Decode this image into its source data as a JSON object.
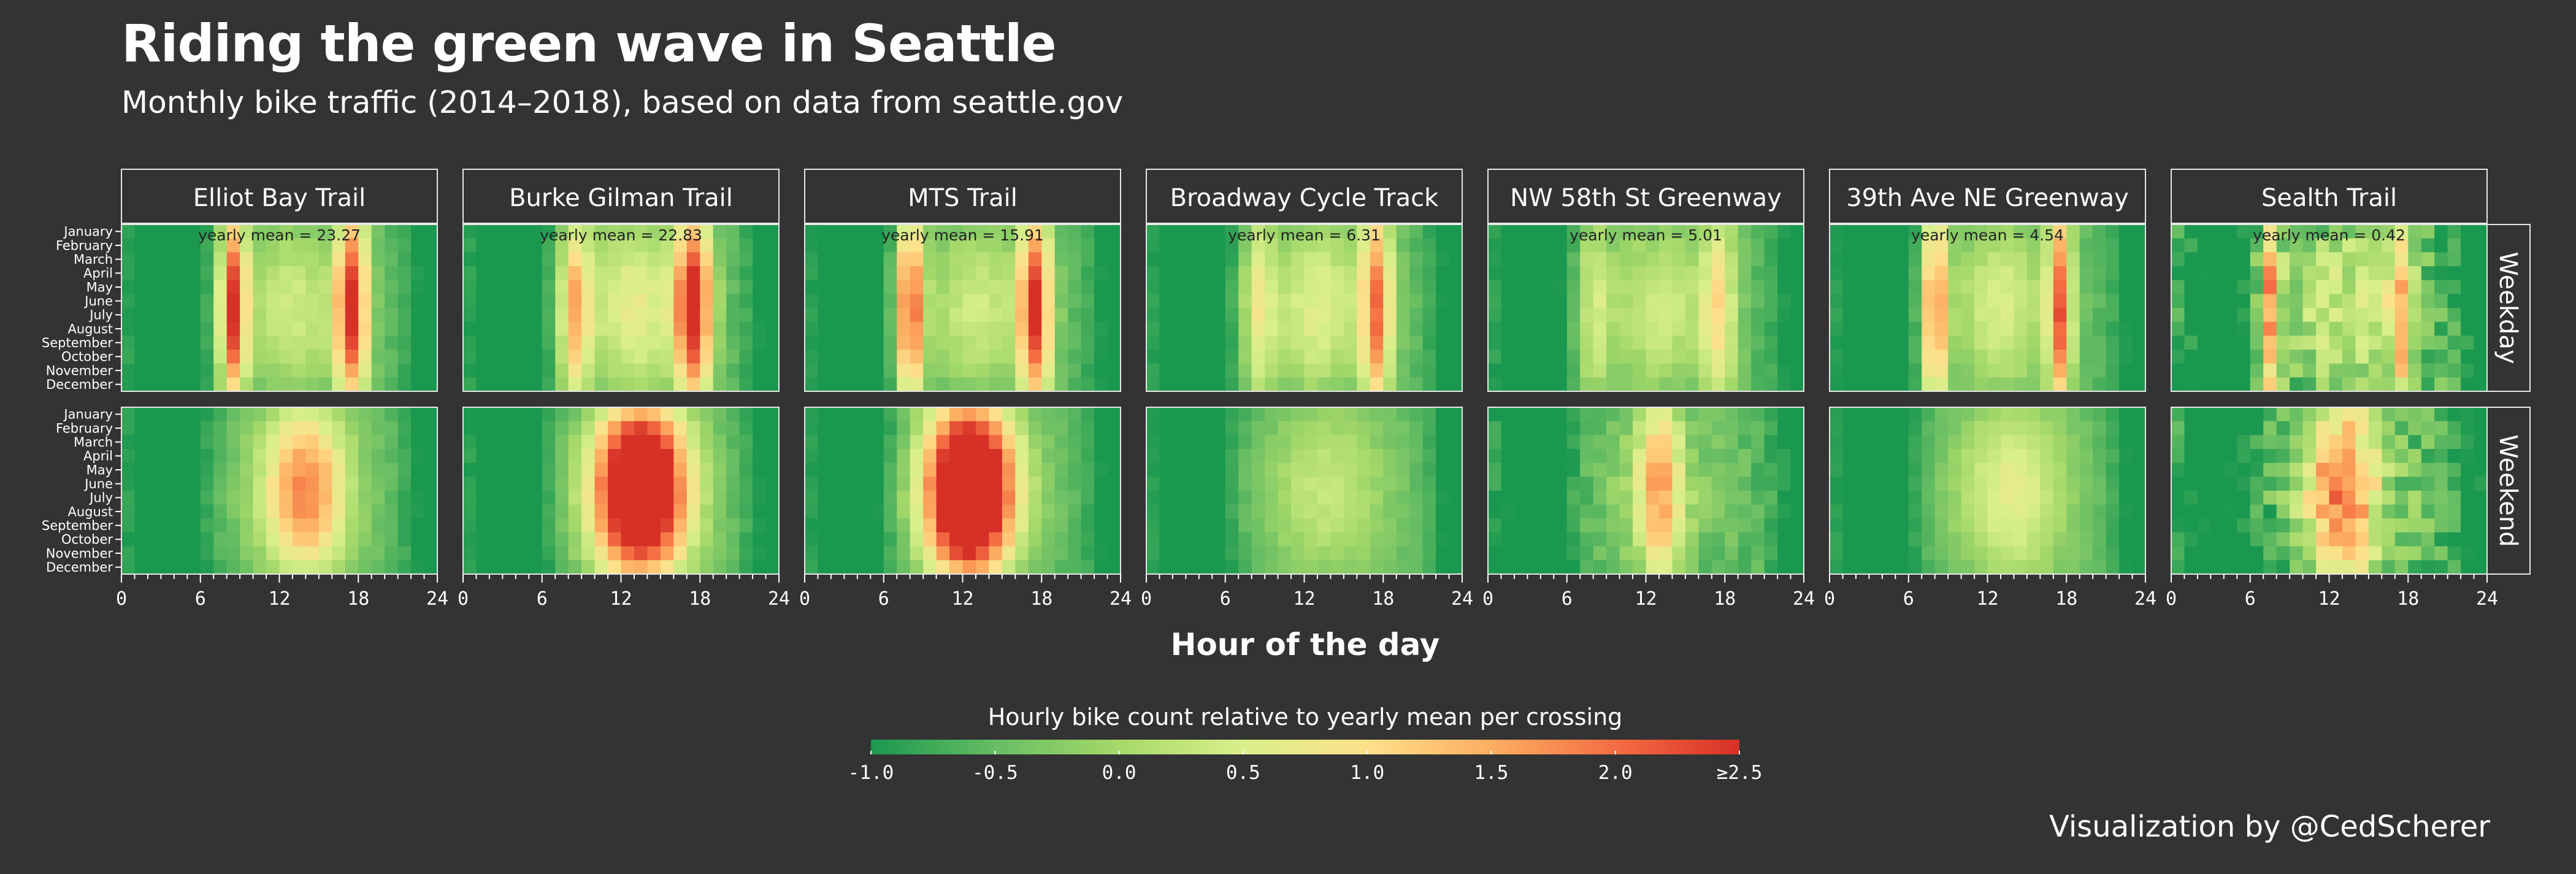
{
  "header": {
    "title": "Riding the green wave in Seattle",
    "subtitle": "Monthly bike traffic (2014–2018), based on data from seattle.gov"
  },
  "footer": {
    "credit": "Visualization by @CedScherer"
  },
  "colors": {
    "background": "#333333",
    "panel_border": "#e6e6e6",
    "scale": [
      "#1a9850",
      "#66bd63",
      "#a6d96a",
      "#d9ef8b",
      "#fee08b",
      "#fdae61",
      "#f46d43",
      "#d73027"
    ]
  },
  "chart_data": {
    "type": "heatmap",
    "title": "Riding the green wave in Seattle",
    "subtitle": "Monthly bike traffic (2014–2018), based on data from seattle.gov",
    "xlabel": "Hour of the day",
    "x_ticks": [
      0,
      6,
      12,
      18,
      24
    ],
    "xlim": [
      0,
      24
    ],
    "months": [
      "January",
      "February",
      "March",
      "April",
      "May",
      "June",
      "July",
      "August",
      "September",
      "October",
      "November",
      "December"
    ],
    "rows": [
      "Weekday",
      "Weekend"
    ],
    "legend": {
      "title": "Hourly bike count relative to yearly mean per crossing",
      "ticks": [
        "-1.0",
        "-0.5",
        "0.0",
        "0.5",
        "1.0",
        "1.5",
        "2.0",
        "≥2.5"
      ],
      "range": [
        -1.0,
        2.5
      ],
      "placement": "bottom"
    },
    "crossings": [
      {
        "name": "Elliot Bay Trail",
        "yearly_mean_label": "yearly mean = 23.27",
        "weekday": {
          "peaks": [
            {
              "hour": 8.5,
              "width": 1.0,
              "amp": 2.6
            },
            {
              "hour": 17.5,
              "width": 1.2,
              "amp": 2.6
            }
          ],
          "midday": 0.6,
          "season": 0.6,
          "noise": 0.1
        },
        "weekend": {
          "peaks": [
            {
              "hour": 14.0,
              "width": 3.2,
              "amp": 1.5
            }
          ],
          "midday": 0.0,
          "season": 0.8,
          "noise": 0.1
        }
      },
      {
        "name": "Burke Gilman Trail",
        "yearly_mean_label": "yearly mean = 22.83",
        "weekday": {
          "peaks": [
            {
              "hour": 8.5,
              "width": 1.2,
              "amp": 1.5
            },
            {
              "hour": 17.5,
              "width": 1.4,
              "amp": 2.5
            }
          ],
          "midday": 0.9,
          "season": 0.7,
          "noise": 0.1
        },
        "weekend": {
          "peaks": [
            {
              "hour": 13.5,
              "width": 3.5,
              "amp": 3.0
            }
          ],
          "midday": 0.0,
          "season": 0.9,
          "noise": 0.1
        }
      },
      {
        "name": "MTS Trail",
        "yearly_mean_label": "yearly mean = 15.91",
        "weekday": {
          "peaks": [
            {
              "hour": 8.0,
              "width": 1.0,
              "amp": 2.4
            },
            {
              "hour": 17.5,
              "width": 1.2,
              "amp": 2.6
            }
          ],
          "midday": 0.6,
          "season": 0.6,
          "noise": 0.1
        },
        "weekend": {
          "peaks": [
            {
              "hour": 12.5,
              "width": 3.3,
              "amp": 3.2
            }
          ],
          "midday": 0.0,
          "season": 0.9,
          "noise": 0.1
        }
      },
      {
        "name": "Broadway Cycle Track",
        "yearly_mean_label": "yearly mean = 6.31",
        "weekday": {
          "peaks": [
            {
              "hour": 8.5,
              "width": 1.2,
              "amp": 1.2
            },
            {
              "hour": 17.5,
              "width": 1.2,
              "amp": 2.4
            }
          ],
          "midday": 0.8,
          "season": 0.4,
          "noise": 0.1
        },
        "weekend": {
          "peaks": [
            {
              "hour": 14.0,
              "width": 4.5,
              "amp": 0.6
            }
          ],
          "midday": 0.0,
          "season": 0.3,
          "noise": 0.08
        }
      },
      {
        "name": "NW 58th St Greenway",
        "yearly_mean_label": "yearly mean = 5.01",
        "weekday": {
          "peaks": [
            {
              "hour": 8.0,
              "width": 1.3,
              "amp": 1.0
            },
            {
              "hour": 17.5,
              "width": 1.3,
              "amp": 1.4
            }
          ],
          "midday": 0.6,
          "season": 0.4,
          "noise": 0.12
        },
        "weekend": {
          "peaks": [
            {
              "hour": 13.0,
              "width": 1.6,
              "amp": 1.7
            }
          ],
          "midday": 0.2,
          "season": 0.4,
          "noise": 0.2
        }
      },
      {
        "name": "39th Ave NE Greenway",
        "yearly_mean_label": "yearly mean = 4.54",
        "weekday": {
          "peaks": [
            {
              "hour": 8.0,
              "width": 0.9,
              "amp": 2.6
            },
            {
              "hour": 17.5,
              "width": 0.9,
              "amp": 2.6
            }
          ],
          "midday": 0.7,
          "season": 0.4,
          "noise": 0.1
        },
        "weekend": {
          "peaks": [
            {
              "hour": 14.0,
              "width": 4.0,
              "amp": 1.0
            }
          ],
          "midday": 0.0,
          "season": 0.3,
          "noise": 0.08
        }
      },
      {
        "name": "Sealth Trail",
        "yearly_mean_label": "yearly mean = 0.42",
        "weekday": {
          "peaks": [
            {
              "hour": 7.5,
              "width": 0.8,
              "amp": 2.4
            },
            {
              "hour": 17.5,
              "width": 1.0,
              "amp": 1.9
            }
          ],
          "midday": 0.6,
          "season": 0.4,
          "noise": 0.45
        },
        "weekend": {
          "peaks": [
            {
              "hour": 13.0,
              "width": 2.6,
              "amp": 2.0
            }
          ],
          "midday": 0.0,
          "season": 0.6,
          "noise": 0.45
        }
      }
    ]
  }
}
